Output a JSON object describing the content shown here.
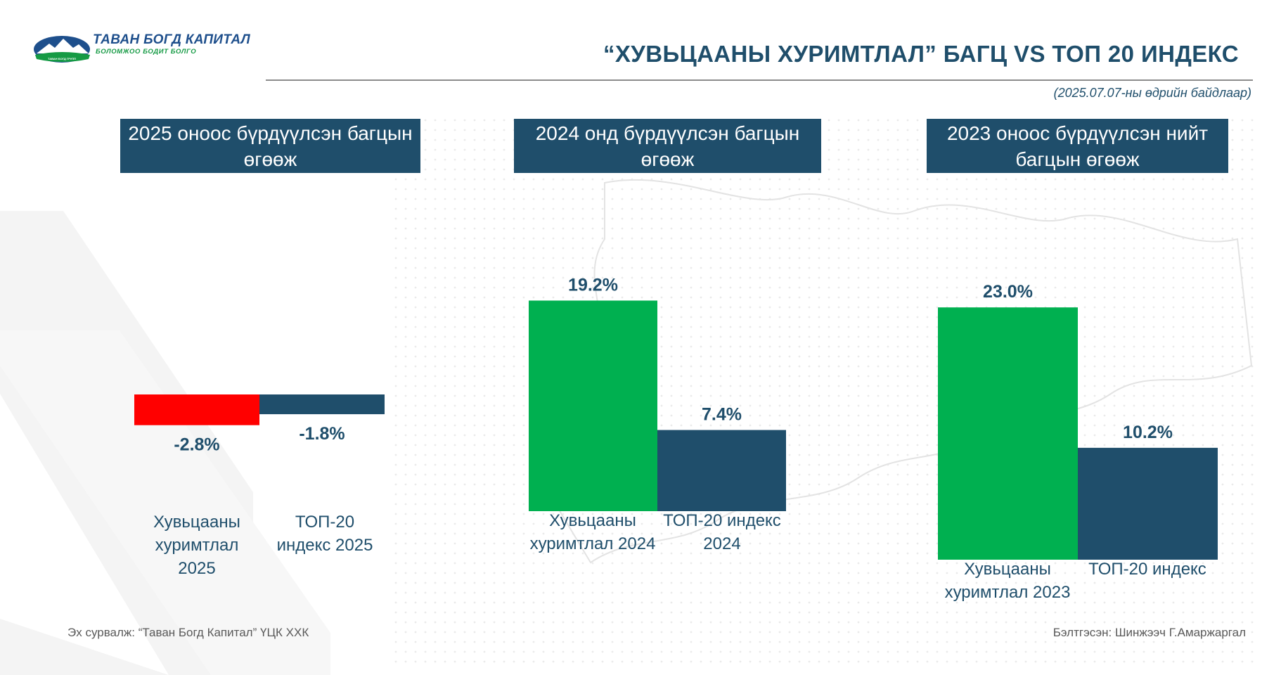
{
  "logo": {
    "title": "ТАВАН БОГД КАПИТАЛ",
    "slogan": "БОЛОМЖОО БОДИТ БОЛГО",
    "badge": "ТАВАН БОГД ГРУПП"
  },
  "header": {
    "title": "“ХУВЬЦААНЫ ХУРИМТЛАЛ” БАГЦ VS ТОП 20 ИНДЕКС",
    "date_note": "(2025.07.07-ны өдрийн байдлаар)"
  },
  "panels": [
    {
      "heading": "2025 оноос бүрдүүлсэн багцын өгөөж"
    },
    {
      "heading": "2024 онд бүрдүүлсэн багцын өгөөж"
    },
    {
      "heading": "2023 оноос бүрдүүлсэн нийт багцын өгөөж"
    }
  ],
  "chart_data": [
    {
      "type": "bar",
      "categories": [
        "Хувьцааны хуримтлал 2025",
        "ТОП-20 индекс 2025"
      ],
      "values": [
        -2.8,
        -1.8
      ],
      "value_labels": [
        "-2.8%",
        "-1.8%"
      ],
      "colors": [
        "#ff0000",
        "#1f4e6b"
      ],
      "grid": false,
      "legend": false
    },
    {
      "type": "bar",
      "categories": [
        "Хувьцааны хуримтлал 2024",
        "ТОП-20 индекс 2024"
      ],
      "values": [
        19.2,
        7.4
      ],
      "value_labels": [
        "19.2%",
        "7.4%"
      ],
      "colors": [
        "#00b050",
        "#1f4e6b"
      ],
      "grid": false,
      "legend": false
    },
    {
      "type": "bar",
      "categories": [
        "Хувьцааны хуримтлал 2023",
        "ТОП-20 индекс"
      ],
      "values": [
        23.0,
        10.2
      ],
      "value_labels": [
        "23.0%",
        "10.2%"
      ],
      "colors": [
        "#00b050",
        "#1f4e6b"
      ],
      "grid": false,
      "legend": false
    }
  ],
  "footer": {
    "source": "Эх сурвалж: “Таван Богд Капитал” ҮЦК ХХК",
    "author": "Бэлтгэсэн: Шинжээч Г.Амаржаргал"
  },
  "colors": {
    "brand_navy": "#1f4e6b",
    "positive_green": "#00b050",
    "negative_red": "#ff0000"
  }
}
